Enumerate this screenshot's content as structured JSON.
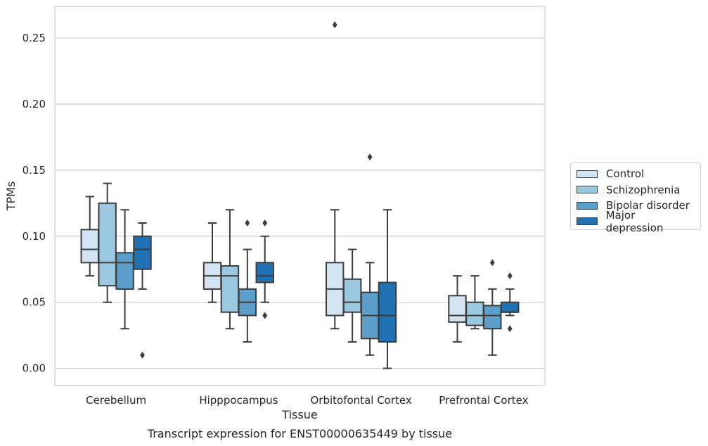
{
  "chart_data": {
    "type": "box",
    "title": "Transcript expression for ENST00000635449 by tissue",
    "xlabel": "Tissue",
    "ylabel": "TPMs",
    "ylim": [
      -0.013,
      0.274
    ],
    "yticks": [
      0.0,
      0.05,
      0.1,
      0.15,
      0.2,
      0.25
    ],
    "ytick_labels": [
      "0.00",
      "0.05",
      "0.10",
      "0.15",
      "0.20",
      "0.25"
    ],
    "categories": [
      "Cerebellum",
      "Hipppocampus",
      "Orbitofontal Cortex",
      "Prefrontal Cortex"
    ],
    "grid": "horizontal",
    "legend_position": "outside-right",
    "series": [
      {
        "name": "Control",
        "color": "#d3e4f3",
        "boxes": [
          {
            "q1": 0.08,
            "median": 0.09,
            "q3": 0.105,
            "whislo": 0.07,
            "whishi": 0.13,
            "fliers": []
          },
          {
            "q1": 0.06,
            "median": 0.07,
            "q3": 0.08,
            "whislo": 0.05,
            "whishi": 0.11,
            "fliers": []
          },
          {
            "q1": 0.04,
            "median": 0.06,
            "q3": 0.08,
            "whislo": 0.03,
            "whishi": 0.12,
            "fliers": [
              0.26
            ]
          },
          {
            "q1": 0.035,
            "median": 0.04,
            "q3": 0.055,
            "whislo": 0.02,
            "whishi": 0.07,
            "fliers": []
          }
        ]
      },
      {
        "name": "Schizophrenia",
        "color": "#9ac8e0",
        "boxes": [
          {
            "q1": 0.0625,
            "median": 0.08,
            "q3": 0.125,
            "whislo": 0.05,
            "whishi": 0.14,
            "fliers": []
          },
          {
            "q1": 0.0425,
            "median": 0.07,
            "q3": 0.0775,
            "whislo": 0.03,
            "whishi": 0.12,
            "fliers": []
          },
          {
            "q1": 0.0425,
            "median": 0.05,
            "q3": 0.0675,
            "whislo": 0.02,
            "whishi": 0.09,
            "fliers": []
          },
          {
            "q1": 0.0325,
            "median": 0.04,
            "q3": 0.05,
            "whislo": 0.03,
            "whishi": 0.07,
            "fliers": []
          }
        ]
      },
      {
        "name": "Bipolar disorder",
        "color": "#5b9ec9",
        "boxes": [
          {
            "q1": 0.06,
            "median": 0.08,
            "q3": 0.0875,
            "whislo": 0.03,
            "whishi": 0.12,
            "fliers": []
          },
          {
            "q1": 0.04,
            "median": 0.05,
            "q3": 0.06,
            "whislo": 0.02,
            "whishi": 0.09,
            "fliers": [
              0.11
            ]
          },
          {
            "q1": 0.0225,
            "median": 0.04,
            "q3": 0.0575,
            "whislo": 0.01,
            "whishi": 0.08,
            "fliers": [
              0.16
            ]
          },
          {
            "q1": 0.03,
            "median": 0.04,
            "q3": 0.0475,
            "whislo": 0.01,
            "whishi": 0.06,
            "fliers": [
              0.08
            ]
          }
        ]
      },
      {
        "name": "Major depression",
        "color": "#2171b5",
        "boxes": [
          {
            "q1": 0.075,
            "median": 0.09,
            "q3": 0.1,
            "whislo": 0.06,
            "whishi": 0.11,
            "fliers": [
              0.01
            ]
          },
          {
            "q1": 0.065,
            "median": 0.07,
            "q3": 0.08,
            "whislo": 0.05,
            "whishi": 0.1,
            "fliers": [
              0.11,
              0.04
            ]
          },
          {
            "q1": 0.02,
            "median": 0.04,
            "q3": 0.065,
            "whislo": 0.0,
            "whishi": 0.12,
            "fliers": []
          },
          {
            "q1": 0.0425,
            "median": 0.0425,
            "q3": 0.05,
            "whislo": 0.04,
            "whishi": 0.06,
            "fliers": [
              0.07,
              0.03
            ]
          }
        ]
      }
    ]
  }
}
